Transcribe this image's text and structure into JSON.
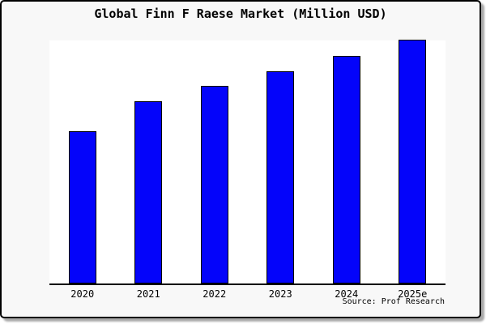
{
  "chart_data": {
    "type": "bar",
    "title": "Global Finn F Raese Market (Million USD)",
    "categories": [
      "2020",
      "2021",
      "2022",
      "2023",
      "2024",
      "2025e"
    ],
    "values": [
      62.5,
      74.8,
      81.0,
      87.0,
      93.4,
      100.0
    ],
    "value_scale": "relative units (no y-axis tick labels shown; tallest bar = 100)",
    "xlabel": "",
    "ylabel": "",
    "ylim": [
      0,
      100
    ],
    "grid": false,
    "legend": null,
    "bar_color": "#0404fa",
    "bar_border_color": "#000000"
  },
  "source_label": "Source: Prof Research",
  "colors": {
    "card_background": "#f8f8f8",
    "plot_background": "#ffffff",
    "axis": "#000000",
    "frame_border": "#000000",
    "shadow": "#aaaaaa"
  }
}
